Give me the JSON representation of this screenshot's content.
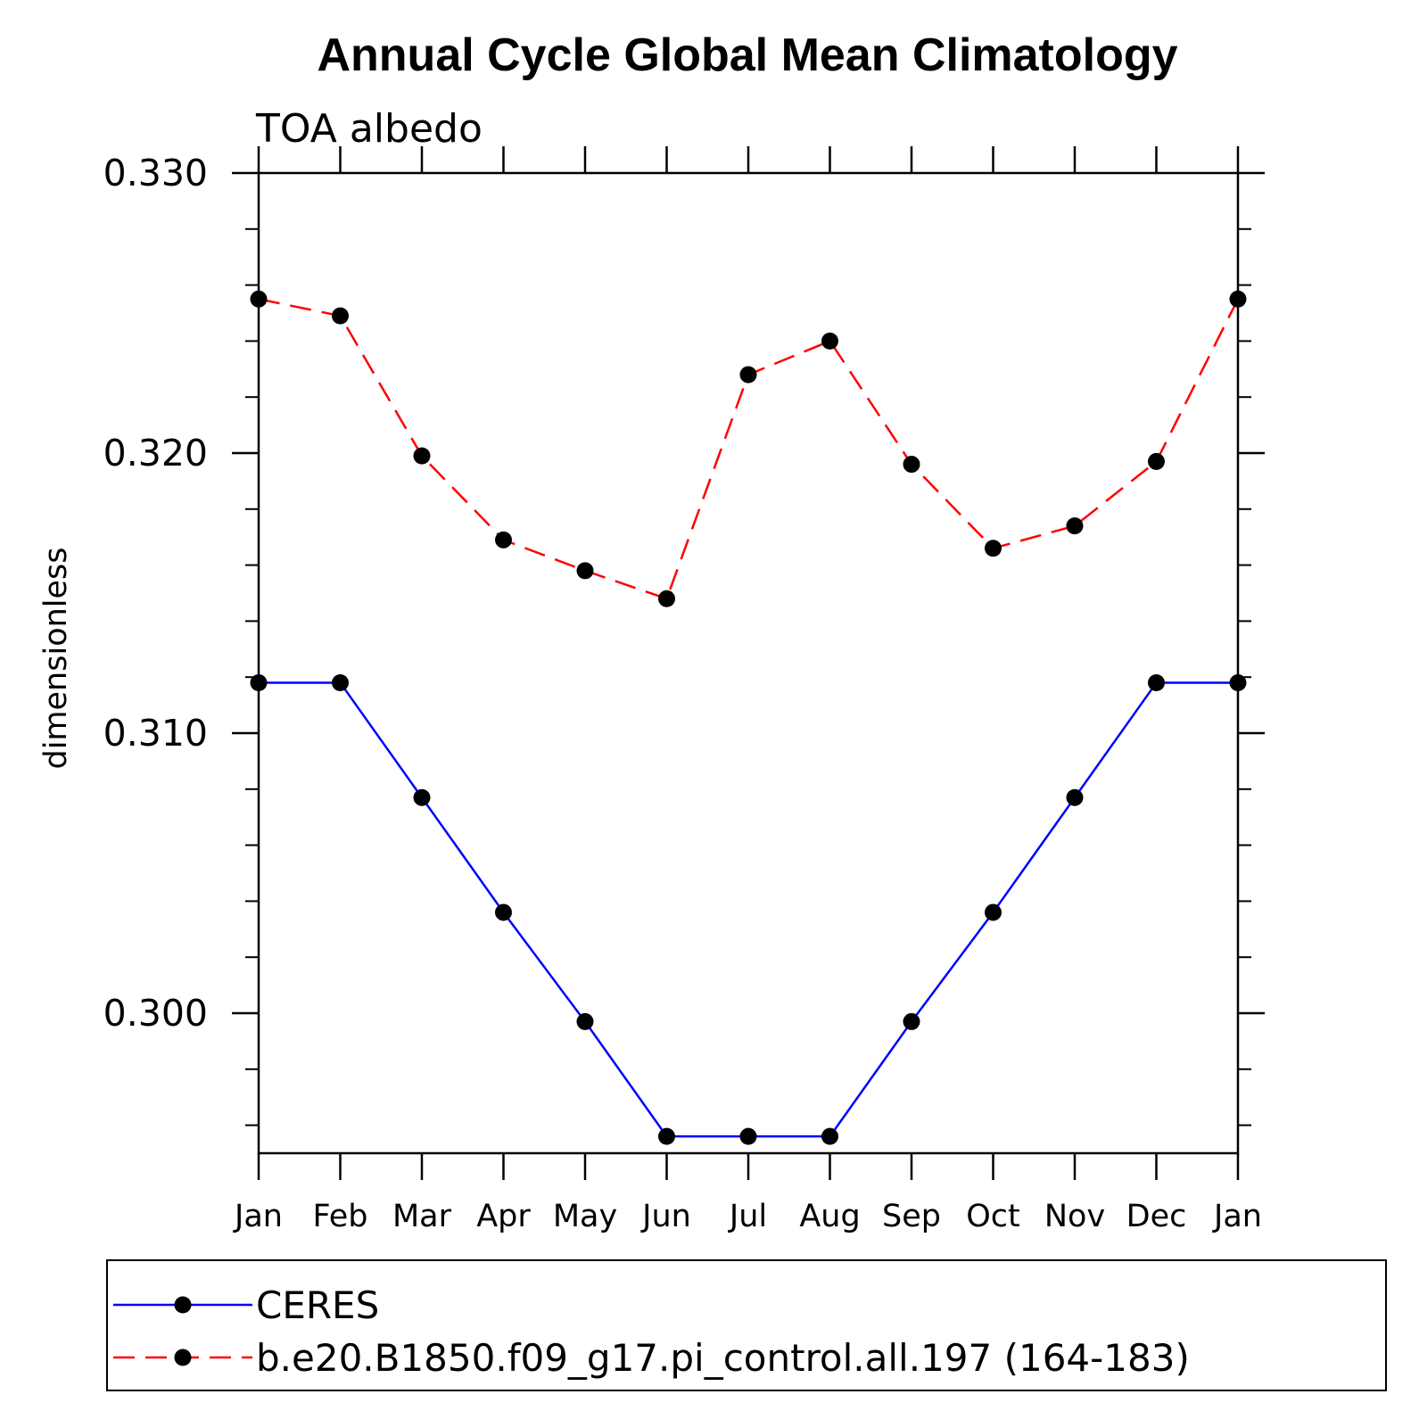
{
  "chart_data": {
    "type": "line",
    "title": "Annual Cycle Global Mean Climatology",
    "subtitle": "TOA albedo",
    "ylabel": "dimensionless",
    "xlabel": "",
    "categories": [
      "Jan",
      "Feb",
      "Mar",
      "Apr",
      "May",
      "Jun",
      "Jul",
      "Aug",
      "Sep",
      "Oct",
      "Nov",
      "Dec",
      "Jan"
    ],
    "ylim": [
      0.295,
      0.33
    ],
    "y_ticks": [
      "0.300",
      "0.310",
      "0.320",
      "0.330"
    ],
    "y_tick_values": [
      0.3,
      0.31,
      0.32,
      0.33
    ],
    "y_minor_step": 0.002,
    "series": [
      {
        "name": "CERES",
        "color": "#0000ff",
        "style": "solid",
        "marker": "filled-circle",
        "values": [
          0.3118,
          0.3118,
          0.3077,
          0.3036,
          0.2997,
          0.2956,
          0.2956,
          0.2956,
          0.2997,
          0.3036,
          0.3077,
          0.3118,
          0.3118
        ]
      },
      {
        "name": "b.e20.B1850.f09_g17.pi_control.all.197 (164-183)",
        "color": "#ff0000",
        "style": "dashed",
        "marker": "filled-circle",
        "values": [
          0.3255,
          0.3249,
          0.3199,
          0.3169,
          0.3158,
          0.3148,
          0.3228,
          0.324,
          0.3196,
          0.3166,
          0.3174,
          0.3197,
          0.3255
        ]
      }
    ],
    "legend_position": "bottom",
    "grid": false
  }
}
